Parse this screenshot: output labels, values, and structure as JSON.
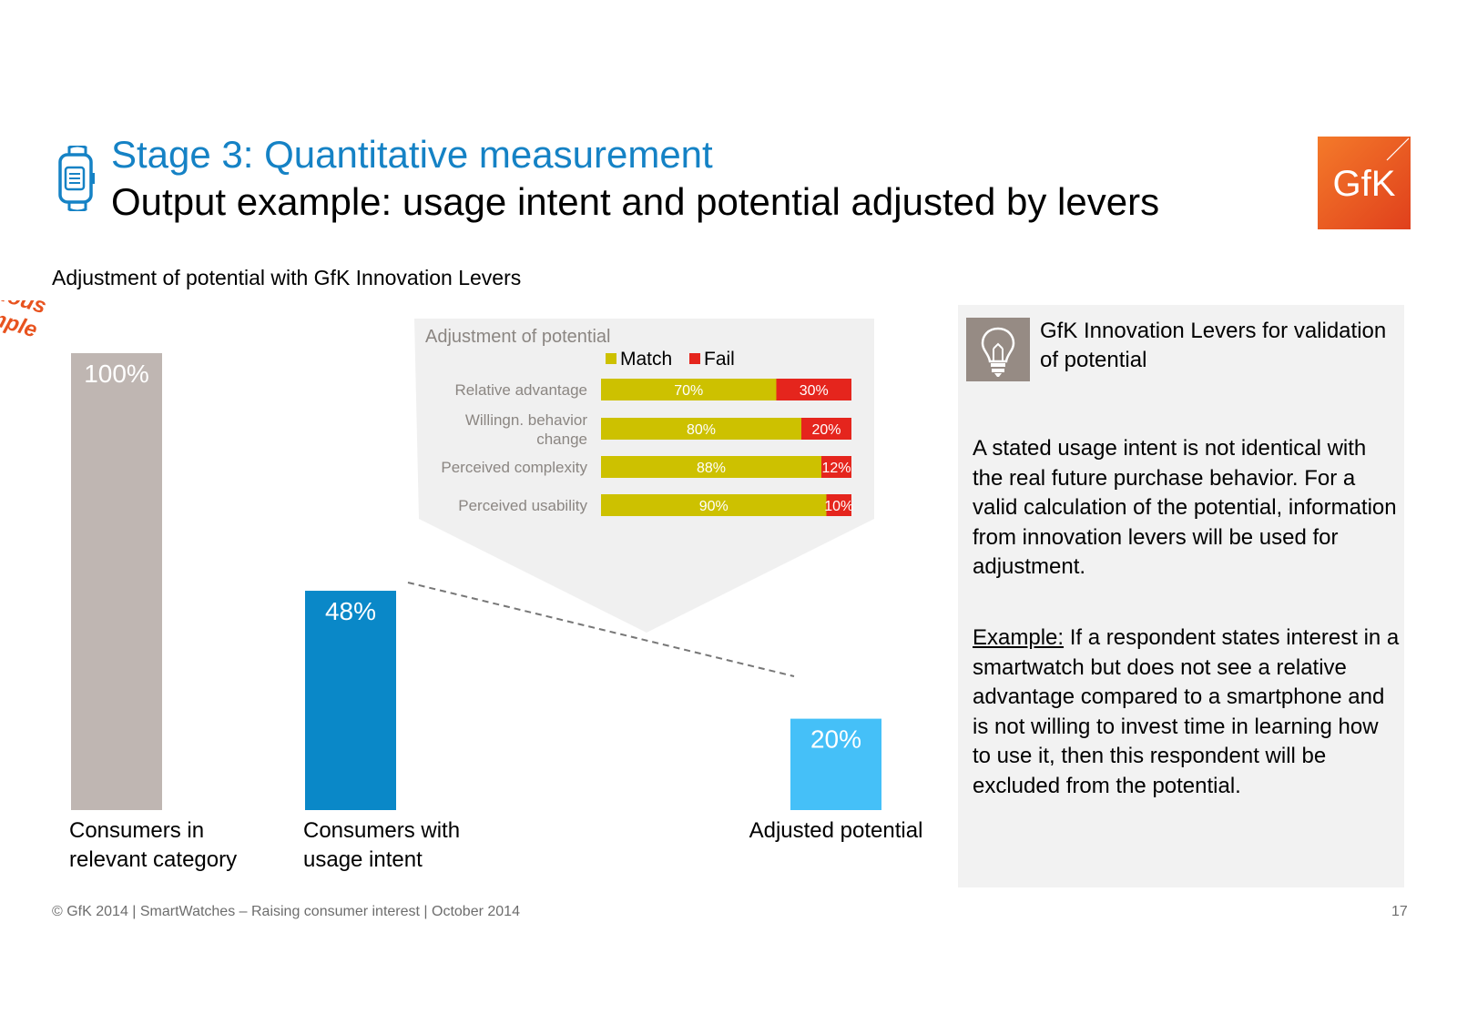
{
  "header": {
    "title": "Stage 3: Quantitative measurement",
    "subtitle": "Output example: usage intent and potential adjusted by levers",
    "icon": "smartwatch-icon",
    "logo_text": "GfK",
    "logo_color": "#e8531f"
  },
  "section_title": "Adjustment of potential with GfK Innovation Levers",
  "chart_data": [
    {
      "type": "bar",
      "categories": [
        "Consumers in relevant category",
        "Consumers with usage intent",
        "Adjusted potential"
      ],
      "category_lines": [
        [
          "Consumers in",
          "relevant category"
        ],
        [
          "Consumers with",
          "usage intent"
        ],
        [
          "Adjusted potential"
        ]
      ],
      "values": [
        100,
        48,
        20
      ],
      "labels": [
        "100%",
        "48%",
        "20%"
      ],
      "colors": [
        "#bfb6b2",
        "#0a88c8",
        "#45c0f8"
      ],
      "ylim": [
        0,
        100
      ],
      "annotation": [
        "Fictitious",
        "example"
      ]
    },
    {
      "type": "bar",
      "orientation": "horizontal",
      "stacked": true,
      "title": "Adjustment of potential",
      "categories": [
        "Relative advantage",
        "Willingn. behavior change",
        "Perceived complexity",
        "Perceived usability"
      ],
      "category_lines": [
        [
          "Relative advantage"
        ],
        [
          "Willingn. behavior",
          "change"
        ],
        [
          "Perceived complexity"
        ],
        [
          "Perceived usability"
        ]
      ],
      "series": [
        {
          "name": "Match",
          "color": "#cdc100",
          "values": [
            70,
            80,
            88,
            90
          ],
          "labels": [
            "70%",
            "80%",
            "88%",
            "90%"
          ]
        },
        {
          "name": "Fail",
          "color": "#e5251d",
          "values": [
            30,
            20,
            12,
            10
          ],
          "labels": [
            "30%",
            "20%",
            "12%",
            "10%"
          ]
        }
      ],
      "xlim": [
        0,
        100
      ],
      "legend": "top"
    }
  ],
  "panel": {
    "title": "GfK Innovation Levers for validation of potential",
    "icon": "lightbulb-icon",
    "text": "A stated usage intent is not identical with the real future purchase behavior. For a valid calculation of the potential, information from innovation levers will be used for adjustment.",
    "example_label": "Example:",
    "example_text": " If a respondent states interest in a smartwatch but does not see a relative advantage compared to a smartphone and is not willing to invest time in learning how to use it, then this respondent will be excluded from the potential."
  },
  "footer": {
    "text": "© GfK 2014 | SmartWatches – Raising consumer  interest | October 2014",
    "page": "17"
  }
}
